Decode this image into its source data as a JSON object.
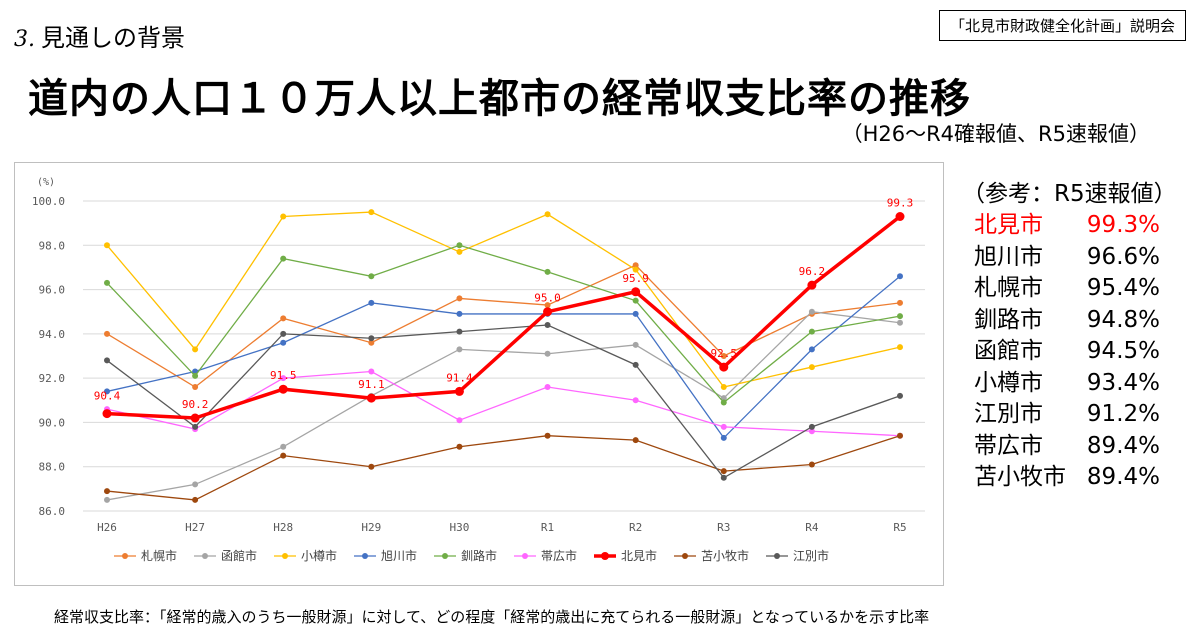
{
  "header": {
    "section_number": "3.",
    "section_title": "見通しの背景",
    "doc_label": "「北見市財政健全化計画」説明会",
    "main_title": "道内の人口１０万人以上都市の経常収支比率の推移",
    "note": "（H26～R4確報値、R5速報値）"
  },
  "reference": {
    "title": "（参考：R5速報値）",
    "rows": [
      {
        "city": "北見市",
        "value": "99.3%"
      },
      {
        "city": "旭川市",
        "value": "96.6%"
      },
      {
        "city": "札幌市",
        "value": "95.4%"
      },
      {
        "city": "釧路市",
        "value": "94.8%"
      },
      {
        "city": "函館市",
        "value": "94.5%"
      },
      {
        "city": "小樽市",
        "value": "93.4%"
      },
      {
        "city": "江別市",
        "value": "91.2%"
      },
      {
        "city": "帯広市",
        "value": "89.4%"
      },
      {
        "city": "苫小牧市",
        "value": "89.4%"
      }
    ]
  },
  "footnote": "経常収支比率：「経常的歳入のうち一般財源」に対して、どの程度「経常的歳出に充てられる一般財源」となっているかを示す比率",
  "chart_data": {
    "type": "line",
    "ylabel": "(%)",
    "ylim": [
      86,
      100
    ],
    "yticks": [
      "100.0",
      "98.0",
      "96.0",
      "94.0",
      "92.0",
      "90.0",
      "88.0",
      "86.0"
    ],
    "categories": [
      "H26",
      "H27",
      "H28",
      "H29",
      "H30",
      "R1",
      "R2",
      "R3",
      "R4",
      "R5"
    ],
    "grid": true,
    "legend_position": "bottom",
    "highlight_series": "北見市",
    "series": [
      {
        "name": "札幌市",
        "color": "#ed7d31",
        "values": [
          94.0,
          91.6,
          94.7,
          93.6,
          95.6,
          95.3,
          97.1,
          93.0,
          94.9,
          95.4
        ]
      },
      {
        "name": "函館市",
        "color": "#a5a5a5",
        "values": [
          86.5,
          87.2,
          88.9,
          91.2,
          93.3,
          93.1,
          93.5,
          91.1,
          95.0,
          94.5
        ]
      },
      {
        "name": "小樽市",
        "color": "#ffc000",
        "values": [
          98.0,
          93.3,
          99.3,
          99.5,
          97.7,
          99.4,
          96.9,
          91.6,
          92.5,
          93.4
        ]
      },
      {
        "name": "旭川市",
        "color": "#4472c4",
        "values": [
          91.4,
          92.3,
          93.6,
          95.4,
          94.9,
          94.9,
          94.9,
          89.3,
          93.3,
          96.6
        ]
      },
      {
        "name": "釧路市",
        "color": "#70ad47",
        "values": [
          96.3,
          92.1,
          97.4,
          96.6,
          98.0,
          96.8,
          95.5,
          90.9,
          94.1,
          94.8
        ]
      },
      {
        "name": "帯広市",
        "color": "#ff66ff",
        "values": [
          90.6,
          89.7,
          92.0,
          92.3,
          90.1,
          91.6,
          91.0,
          89.8,
          89.6,
          89.4
        ]
      },
      {
        "name": "北見市",
        "color": "#ff0000",
        "values": [
          90.4,
          90.2,
          91.5,
          91.1,
          91.4,
          95.0,
          95.9,
          92.5,
          96.2,
          99.3
        ],
        "labels": [
          "90.4",
          "90.2",
          "91.5",
          "91.1",
          "91.4",
          "95.0",
          "95.9",
          "92.5",
          "96.2",
          "99.3"
        ]
      },
      {
        "name": "苫小牧市",
        "color": "#9e480e",
        "values": [
          86.9,
          86.5,
          88.5,
          88.0,
          88.9,
          89.4,
          89.2,
          87.8,
          88.1,
          89.4
        ]
      },
      {
        "name": "江別市",
        "color": "#595959",
        "values": [
          92.8,
          89.8,
          94.0,
          93.8,
          94.1,
          94.4,
          92.6,
          87.5,
          89.8,
          91.2
        ]
      }
    ]
  }
}
